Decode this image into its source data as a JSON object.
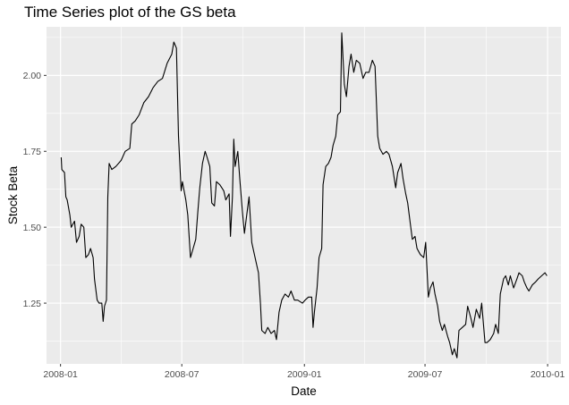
{
  "chart_data": {
    "type": "line",
    "title": "Time Series plot of the GS beta",
    "xlabel": "Date",
    "ylabel": "Stock Beta",
    "x_ticks": [
      "2008-01",
      "2008-07",
      "2009-01",
      "2009-07",
      "2010-01"
    ],
    "y_ticks": [
      "1.25",
      "1.50",
      "1.75",
      "2.00"
    ],
    "xlim": [
      "2007-12-11",
      "2010-01-21"
    ],
    "ylim": [
      1.05,
      2.16
    ],
    "grid": true,
    "legend": "none",
    "colors": {
      "panel_background": "#ebebeb",
      "grid_major": "#ffffff",
      "line": "#000000",
      "tick_label": "#4d4d4d"
    },
    "series": [
      {
        "points": [
          [
            "2008-01-02",
            1.73
          ],
          [
            "2008-01-03",
            1.69
          ],
          [
            "2008-01-07",
            1.68
          ],
          [
            "2008-01-09",
            1.6
          ],
          [
            "2008-01-11",
            1.59
          ],
          [
            "2008-01-15",
            1.54
          ],
          [
            "2008-01-17",
            1.5
          ],
          [
            "2008-01-22",
            1.52
          ],
          [
            "2008-01-25",
            1.45
          ],
          [
            "2008-01-29",
            1.47
          ],
          [
            "2008-02-01",
            1.51
          ],
          [
            "2008-02-05",
            1.5
          ],
          [
            "2008-02-08",
            1.4
          ],
          [
            "2008-02-12",
            1.41
          ],
          [
            "2008-02-15",
            1.43
          ],
          [
            "2008-02-19",
            1.4
          ],
          [
            "2008-02-21",
            1.33
          ],
          [
            "2008-02-25",
            1.26
          ],
          [
            "2008-02-28",
            1.25
          ],
          [
            "2008-03-03",
            1.25
          ],
          [
            "2008-03-05",
            1.19
          ],
          [
            "2008-03-07",
            1.24
          ],
          [
            "2008-03-10",
            1.26
          ],
          [
            "2008-03-12",
            1.6
          ],
          [
            "2008-03-14",
            1.71
          ],
          [
            "2008-03-18",
            1.69
          ],
          [
            "2008-03-24",
            1.7
          ],
          [
            "2008-04-01",
            1.72
          ],
          [
            "2008-04-07",
            1.75
          ],
          [
            "2008-04-14",
            1.76
          ],
          [
            "2008-04-17",
            1.84
          ],
          [
            "2008-04-22",
            1.85
          ],
          [
            "2008-04-28",
            1.87
          ],
          [
            "2008-05-05",
            1.91
          ],
          [
            "2008-05-12",
            1.93
          ],
          [
            "2008-05-19",
            1.96
          ],
          [
            "2008-05-26",
            1.98
          ],
          [
            "2008-06-02",
            1.99
          ],
          [
            "2008-06-09",
            2.04
          ],
          [
            "2008-06-16",
            2.07
          ],
          [
            "2008-06-19",
            2.11
          ],
          [
            "2008-06-23",
            2.09
          ],
          [
            "2008-06-26",
            1.8
          ],
          [
            "2008-06-30",
            1.62
          ],
          [
            "2008-07-02",
            1.65
          ],
          [
            "2008-07-07",
            1.59
          ],
          [
            "2008-07-10",
            1.54
          ],
          [
            "2008-07-14",
            1.4
          ],
          [
            "2008-07-18",
            1.43
          ],
          [
            "2008-07-22",
            1.46
          ],
          [
            "2008-07-25",
            1.55
          ],
          [
            "2008-07-28",
            1.63
          ],
          [
            "2008-08-01",
            1.71
          ],
          [
            "2008-08-05",
            1.75
          ],
          [
            "2008-08-08",
            1.73
          ],
          [
            "2008-08-12",
            1.7
          ],
          [
            "2008-08-15",
            1.58
          ],
          [
            "2008-08-19",
            1.57
          ],
          [
            "2008-08-22",
            1.65
          ],
          [
            "2008-08-27",
            1.64
          ],
          [
            "2008-09-02",
            1.62
          ],
          [
            "2008-09-05",
            1.59
          ],
          [
            "2008-09-10",
            1.61
          ],
          [
            "2008-09-12",
            1.47
          ],
          [
            "2008-09-15",
            1.6
          ],
          [
            "2008-09-17",
            1.79
          ],
          [
            "2008-09-19",
            1.7
          ],
          [
            "2008-09-23",
            1.75
          ],
          [
            "2008-09-26",
            1.66
          ],
          [
            "2008-09-30",
            1.55
          ],
          [
            "2008-10-03",
            1.48
          ],
          [
            "2008-10-07",
            1.55
          ],
          [
            "2008-10-10",
            1.6
          ],
          [
            "2008-10-14",
            1.45
          ],
          [
            "2008-10-17",
            1.42
          ],
          [
            "2008-10-21",
            1.38
          ],
          [
            "2008-10-24",
            1.35
          ],
          [
            "2008-10-27",
            1.25
          ],
          [
            "2008-10-29",
            1.16
          ],
          [
            "2008-11-03",
            1.15
          ],
          [
            "2008-11-07",
            1.17
          ],
          [
            "2008-11-12",
            1.15
          ],
          [
            "2008-11-17",
            1.16
          ],
          [
            "2008-11-20",
            1.13
          ],
          [
            "2008-11-24",
            1.22
          ],
          [
            "2008-11-28",
            1.26
          ],
          [
            "2008-12-03",
            1.28
          ],
          [
            "2008-12-08",
            1.27
          ],
          [
            "2008-12-12",
            1.29
          ],
          [
            "2008-12-17",
            1.26
          ],
          [
            "2008-12-22",
            1.26
          ],
          [
            "2008-12-29",
            1.25
          ],
          [
            "2009-01-02",
            1.26
          ],
          [
            "2009-01-07",
            1.27
          ],
          [
            "2009-01-12",
            1.27
          ],
          [
            "2009-01-14",
            1.17
          ],
          [
            "2009-01-16",
            1.22
          ],
          [
            "2009-01-20",
            1.3
          ],
          [
            "2009-01-23",
            1.4
          ],
          [
            "2009-01-27",
            1.43
          ],
          [
            "2009-01-29",
            1.64
          ],
          [
            "2009-02-02",
            1.7
          ],
          [
            "2009-02-06",
            1.71
          ],
          [
            "2009-02-10",
            1.73
          ],
          [
            "2009-02-13",
            1.77
          ],
          [
            "2009-02-17",
            1.8
          ],
          [
            "2009-02-20",
            1.87
          ],
          [
            "2009-02-24",
            1.88
          ],
          [
            "2009-02-26",
            2.14
          ],
          [
            "2009-03-02",
            1.97
          ],
          [
            "2009-03-05",
            1.93
          ],
          [
            "2009-03-09",
            2.03
          ],
          [
            "2009-03-12",
            2.07
          ],
          [
            "2009-03-16",
            2.01
          ],
          [
            "2009-03-20",
            2.05
          ],
          [
            "2009-03-25",
            2.04
          ],
          [
            "2009-03-30",
            1.99
          ],
          [
            "2009-04-03",
            2.01
          ],
          [
            "2009-04-08",
            2.01
          ],
          [
            "2009-04-13",
            2.05
          ],
          [
            "2009-04-17",
            2.03
          ],
          [
            "2009-04-21",
            1.8
          ],
          [
            "2009-04-24",
            1.76
          ],
          [
            "2009-04-29",
            1.74
          ],
          [
            "2009-05-04",
            1.75
          ],
          [
            "2009-05-08",
            1.74
          ],
          [
            "2009-05-13",
            1.7
          ],
          [
            "2009-05-18",
            1.63
          ],
          [
            "2009-05-21",
            1.68
          ],
          [
            "2009-05-26",
            1.71
          ],
          [
            "2009-05-29",
            1.66
          ],
          [
            "2009-06-02",
            1.61
          ],
          [
            "2009-06-05",
            1.58
          ],
          [
            "2009-06-09",
            1.51
          ],
          [
            "2009-06-12",
            1.46
          ],
          [
            "2009-06-16",
            1.47
          ],
          [
            "2009-06-19",
            1.43
          ],
          [
            "2009-06-24",
            1.41
          ],
          [
            "2009-06-29",
            1.4
          ],
          [
            "2009-07-02",
            1.45
          ],
          [
            "2009-07-06",
            1.27
          ],
          [
            "2009-07-09",
            1.3
          ],
          [
            "2009-07-13",
            1.32
          ],
          [
            "2009-07-16",
            1.28
          ],
          [
            "2009-07-20",
            1.24
          ],
          [
            "2009-07-23",
            1.19
          ],
          [
            "2009-07-27",
            1.16
          ],
          [
            "2009-07-30",
            1.18
          ],
          [
            "2009-08-04",
            1.14
          ],
          [
            "2009-08-07",
            1.12
          ],
          [
            "2009-08-11",
            1.08
          ],
          [
            "2009-08-14",
            1.1
          ],
          [
            "2009-08-18",
            1.07
          ],
          [
            "2009-08-21",
            1.16
          ],
          [
            "2009-08-26",
            1.17
          ],
          [
            "2009-08-31",
            1.18
          ],
          [
            "2009-09-03",
            1.24
          ],
          [
            "2009-09-08",
            1.2
          ],
          [
            "2009-09-11",
            1.17
          ],
          [
            "2009-09-16",
            1.23
          ],
          [
            "2009-09-21",
            1.2
          ],
          [
            "2009-09-24",
            1.25
          ],
          [
            "2009-09-29",
            1.12
          ],
          [
            "2009-10-02",
            1.12
          ],
          [
            "2009-10-07",
            1.13
          ],
          [
            "2009-10-12",
            1.15
          ],
          [
            "2009-10-15",
            1.18
          ],
          [
            "2009-10-19",
            1.15
          ],
          [
            "2009-10-22",
            1.28
          ],
          [
            "2009-10-27",
            1.33
          ],
          [
            "2009-10-30",
            1.34
          ],
          [
            "2009-11-03",
            1.31
          ],
          [
            "2009-11-06",
            1.34
          ],
          [
            "2009-11-11",
            1.3
          ],
          [
            "2009-11-16",
            1.33
          ],
          [
            "2009-11-19",
            1.35
          ],
          [
            "2009-11-24",
            1.34
          ],
          [
            "2009-11-27",
            1.32
          ],
          [
            "2009-12-01",
            1.3
          ],
          [
            "2009-12-04",
            1.29
          ],
          [
            "2009-12-09",
            1.31
          ],
          [
            "2009-12-14",
            1.32
          ],
          [
            "2009-12-18",
            1.33
          ],
          [
            "2009-12-23",
            1.34
          ],
          [
            "2009-12-28",
            1.35
          ],
          [
            "2009-12-31",
            1.34
          ]
        ]
      }
    ]
  }
}
